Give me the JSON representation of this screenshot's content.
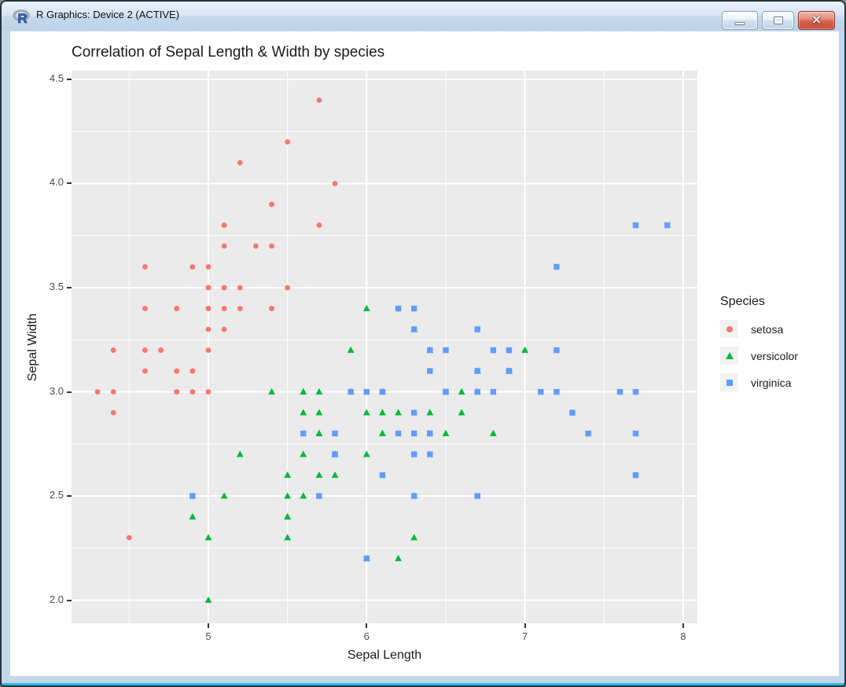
{
  "window": {
    "title": "R Graphics: Device 2 (ACTIVE)",
    "icon": "r-logo-icon",
    "controls": [
      {
        "id": "minimize",
        "icon": "minimize-icon"
      },
      {
        "id": "maximize",
        "icon": "maximize-icon"
      },
      {
        "id": "close",
        "icon": "close-icon",
        "glyph": "✕",
        "color": "#c94f3c"
      }
    ]
  },
  "chart_data": {
    "type": "scatter",
    "title": "Correlation of Sepal Length & Width by species",
    "xlabel": "Sepal Length",
    "ylabel": "Sepal Width",
    "panel_bg": "#EBEBEB",
    "grid_color": "#FFFFFF",
    "tick_color": "#333333",
    "tick_label_color": "#4d4d4d",
    "axes": {
      "xlim": [
        4.1356,
        8.0899
      ],
      "ylim": [
        1.8887,
        4.5415
      ],
      "x_ticks": [
        {
          "value": 5,
          "label": "5"
        },
        {
          "value": 6,
          "label": "6"
        },
        {
          "value": 7,
          "label": "7"
        },
        {
          "value": 8,
          "label": "8"
        }
      ],
      "y_ticks": [
        {
          "value": 2.0,
          "label": "2.0"
        },
        {
          "value": 2.5,
          "label": "2.5"
        },
        {
          "value": 3.0,
          "label": "3.0"
        },
        {
          "value": 3.5,
          "label": "3.5"
        },
        {
          "value": 4.0,
          "label": "4.0"
        },
        {
          "value": 4.5,
          "label": "4.5"
        }
      ],
      "x_minor": [
        4.5,
        5.5,
        6.5,
        7.5
      ],
      "y_minor": [
        2.25,
        2.75,
        3.25,
        3.75,
        4.25
      ],
      "grid": true
    },
    "legend": {
      "title": "Species",
      "position": "right",
      "entries": [
        {
          "label": "setosa",
          "shape": "circle",
          "color": "#F8766D"
        },
        {
          "label": "versicolor",
          "shape": "triangle",
          "color": "#00BA38"
        },
        {
          "label": "virginica",
          "shape": "square",
          "color": "#619CFF"
        }
      ]
    },
    "series": [
      {
        "name": "setosa",
        "shape": "circle",
        "color": "#F8766D",
        "points": [
          [
            5.1,
            3.5
          ],
          [
            4.9,
            3.0
          ],
          [
            4.7,
            3.2
          ],
          [
            4.6,
            3.1
          ],
          [
            5.0,
            3.6
          ],
          [
            5.4,
            3.9
          ],
          [
            4.6,
            3.4
          ],
          [
            5.0,
            3.4
          ],
          [
            4.4,
            2.9
          ],
          [
            4.9,
            3.1
          ],
          [
            5.4,
            3.7
          ],
          [
            4.8,
            3.4
          ],
          [
            4.8,
            3.0
          ],
          [
            4.3,
            3.0
          ],
          [
            5.8,
            4.0
          ],
          [
            5.7,
            4.4
          ],
          [
            5.4,
            3.9
          ],
          [
            5.1,
            3.5
          ],
          [
            5.7,
            3.8
          ],
          [
            5.1,
            3.8
          ],
          [
            5.4,
            3.4
          ],
          [
            5.1,
            3.7
          ],
          [
            4.6,
            3.6
          ],
          [
            5.1,
            3.3
          ],
          [
            4.8,
            3.4
          ],
          [
            5.0,
            3.0
          ],
          [
            5.0,
            3.4
          ],
          [
            5.2,
            3.5
          ],
          [
            5.2,
            3.4
          ],
          [
            4.7,
            3.2
          ],
          [
            4.8,
            3.1
          ],
          [
            5.4,
            3.4
          ],
          [
            5.2,
            4.1
          ],
          [
            5.5,
            4.2
          ],
          [
            4.9,
            3.1
          ],
          [
            5.0,
            3.2
          ],
          [
            5.5,
            3.5
          ],
          [
            4.9,
            3.6
          ],
          [
            4.4,
            3.0
          ],
          [
            5.1,
            3.4
          ],
          [
            5.0,
            3.5
          ],
          [
            4.5,
            2.3
          ],
          [
            4.4,
            3.2
          ],
          [
            5.0,
            3.5
          ],
          [
            5.1,
            3.8
          ],
          [
            4.8,
            3.0
          ],
          [
            5.1,
            3.8
          ],
          [
            4.6,
            3.2
          ],
          [
            5.3,
            3.7
          ],
          [
            5.0,
            3.3
          ]
        ]
      },
      {
        "name": "versicolor",
        "shape": "triangle",
        "color": "#00BA38",
        "points": [
          [
            7.0,
            3.2
          ],
          [
            6.4,
            3.2
          ],
          [
            6.9,
            3.1
          ],
          [
            5.5,
            2.3
          ],
          [
            6.5,
            2.8
          ],
          [
            5.7,
            2.8
          ],
          [
            6.3,
            3.3
          ],
          [
            4.9,
            2.4
          ],
          [
            6.6,
            2.9
          ],
          [
            5.2,
            2.7
          ],
          [
            5.0,
            2.0
          ],
          [
            5.9,
            3.0
          ],
          [
            6.0,
            2.2
          ],
          [
            6.1,
            2.9
          ],
          [
            5.6,
            2.9
          ],
          [
            6.7,
            3.1
          ],
          [
            5.6,
            3.0
          ],
          [
            5.8,
            2.7
          ],
          [
            6.2,
            2.2
          ],
          [
            5.6,
            2.5
          ],
          [
            5.9,
            3.2
          ],
          [
            6.1,
            2.8
          ],
          [
            6.3,
            2.5
          ],
          [
            6.1,
            2.8
          ],
          [
            6.4,
            2.9
          ],
          [
            6.6,
            3.0
          ],
          [
            6.8,
            2.8
          ],
          [
            6.7,
            3.0
          ],
          [
            6.0,
            2.9
          ],
          [
            5.7,
            2.6
          ],
          [
            5.5,
            2.4
          ],
          [
            5.5,
            2.4
          ],
          [
            5.8,
            2.7
          ],
          [
            6.0,
            2.7
          ],
          [
            5.4,
            3.0
          ],
          [
            6.0,
            3.4
          ],
          [
            6.7,
            3.1
          ],
          [
            6.3,
            2.3
          ],
          [
            5.6,
            3.0
          ],
          [
            5.5,
            2.5
          ],
          [
            5.5,
            2.6
          ],
          [
            6.1,
            3.0
          ],
          [
            5.8,
            2.6
          ],
          [
            5.0,
            2.3
          ],
          [
            5.6,
            2.7
          ],
          [
            5.7,
            3.0
          ],
          [
            5.7,
            2.9
          ],
          [
            6.2,
            2.9
          ],
          [
            5.1,
            2.5
          ],
          [
            5.7,
            2.8
          ]
        ]
      },
      {
        "name": "virginica",
        "shape": "square",
        "color": "#619CFF",
        "points": [
          [
            6.3,
            3.3
          ],
          [
            5.8,
            2.7
          ],
          [
            7.1,
            3.0
          ],
          [
            6.3,
            2.9
          ],
          [
            6.5,
            3.0
          ],
          [
            7.6,
            3.0
          ],
          [
            4.9,
            2.5
          ],
          [
            7.3,
            2.9
          ],
          [
            6.7,
            2.5
          ],
          [
            7.2,
            3.6
          ],
          [
            6.5,
            3.2
          ],
          [
            6.4,
            2.7
          ],
          [
            6.8,
            3.0
          ],
          [
            5.7,
            2.5
          ],
          [
            5.8,
            2.8
          ],
          [
            6.4,
            3.2
          ],
          [
            6.5,
            3.0
          ],
          [
            7.7,
            3.8
          ],
          [
            7.7,
            2.6
          ],
          [
            6.0,
            2.2
          ],
          [
            6.9,
            3.2
          ],
          [
            5.6,
            2.8
          ],
          [
            7.7,
            2.8
          ],
          [
            6.3,
            2.7
          ],
          [
            6.7,
            3.3
          ],
          [
            7.2,
            3.2
          ],
          [
            6.2,
            2.8
          ],
          [
            6.1,
            3.0
          ],
          [
            6.4,
            2.8
          ],
          [
            7.2,
            3.0
          ],
          [
            7.4,
            2.8
          ],
          [
            7.9,
            3.8
          ],
          [
            6.4,
            2.8
          ],
          [
            6.3,
            2.8
          ],
          [
            6.1,
            2.6
          ],
          [
            7.7,
            3.0
          ],
          [
            6.3,
            3.4
          ],
          [
            6.4,
            3.1
          ],
          [
            6.0,
            3.0
          ],
          [
            6.9,
            3.1
          ],
          [
            6.7,
            3.1
          ],
          [
            6.9,
            3.1
          ],
          [
            5.8,
            2.7
          ],
          [
            6.8,
            3.2
          ],
          [
            6.7,
            3.3
          ],
          [
            6.7,
            3.0
          ],
          [
            6.3,
            2.5
          ],
          [
            6.5,
            3.0
          ],
          [
            6.2,
            3.4
          ],
          [
            5.9,
            3.0
          ]
        ]
      }
    ]
  }
}
